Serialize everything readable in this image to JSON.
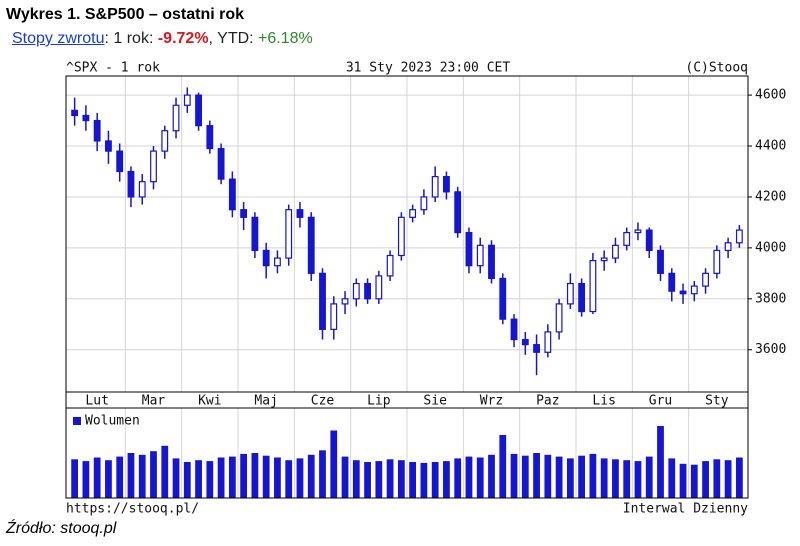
{
  "header": {
    "title": "Wykres 1. S&P500 – ostatni rok",
    "returns": {
      "link": "Stopy zwrotu",
      "period_label": ": 1 rok: ",
      "period_value": "-9.72%",
      "ytd_label": ", YTD: ",
      "ytd_value": "+6.18%"
    }
  },
  "chart_data": {
    "type": "candlestick",
    "symbol_label": "^SPX - 1 rok",
    "date_label": "31 Sty 2023 23:00 CET",
    "copyright": "(C)Stooq",
    "categories": [
      null,
      null,
      "Lut",
      null,
      null,
      null,
      null,
      "Mar",
      null,
      null,
      null,
      null,
      "Kwi",
      null,
      null,
      null,
      null,
      "Maj",
      null,
      null,
      null,
      null,
      "Cze",
      null,
      null,
      null,
      null,
      "Lip",
      null,
      null,
      null,
      null,
      "Sie",
      null,
      null,
      null,
      null,
      "Wrz",
      null,
      null,
      null,
      null,
      "Paz",
      null,
      null,
      null,
      null,
      "Lis",
      null,
      null,
      null,
      null,
      "Gru",
      null,
      null,
      null,
      null,
      "Sty",
      null,
      null
    ],
    "open": [
      4540,
      4520,
      4500,
      4420,
      4380,
      4300,
      4200,
      4260,
      4380,
      4460,
      4560,
      4600,
      4480,
      4390,
      4270,
      4150,
      4120,
      3990,
      3930,
      3960,
      4150,
      4120,
      3900,
      3680,
      3780,
      3800,
      3860,
      3800,
      3890,
      3970,
      4120,
      4150,
      4200,
      4280,
      4220,
      4060,
      3930,
      4010,
      3880,
      3720,
      3640,
      3620,
      3590,
      3670,
      3780,
      3860,
      3750,
      3950,
      3960,
      4010,
      4060,
      4070,
      3990,
      3900,
      3830,
      3820,
      3850,
      3900,
      3990,
      4020
    ],
    "high": [
      4590,
      4560,
      4530,
      4460,
      4410,
      4320,
      4290,
      4400,
      4480,
      4590,
      4630,
      4610,
      4500,
      4410,
      4300,
      4180,
      4140,
      4020,
      3990,
      4170,
      4180,
      4140,
      3920,
      3810,
      3830,
      3880,
      3880,
      3910,
      3990,
      4140,
      4170,
      4230,
      4320,
      4300,
      4240,
      4080,
      4040,
      4030,
      3900,
      3740,
      3670,
      3660,
      3700,
      3800,
      3900,
      3880,
      3980,
      3990,
      4040,
      4080,
      4100,
      4080,
      4010,
      3920,
      3860,
      3870,
      3920,
      4010,
      4040,
      4090
    ],
    "low": [
      4480,
      4460,
      4380,
      4330,
      4260,
      4160,
      4170,
      4230,
      4350,
      4430,
      4530,
      4460,
      4370,
      4250,
      4120,
      4070,
      3960,
      3880,
      3900,
      3930,
      4080,
      3870,
      3640,
      3640,
      3740,
      3770,
      3780,
      3780,
      3870,
      3950,
      4100,
      4130,
      4180,
      4190,
      4040,
      3900,
      3900,
      3860,
      3700,
      3610,
      3580,
      3500,
      3570,
      3640,
      3760,
      3730,
      3740,
      3910,
      3940,
      3990,
      4030,
      3960,
      3870,
      3790,
      3780,
      3790,
      3820,
      3880,
      3960,
      4000
    ],
    "close": [
      4520,
      4500,
      4420,
      4380,
      4300,
      4200,
      4260,
      4380,
      4460,
      4560,
      4600,
      4480,
      4390,
      4270,
      4150,
      4120,
      3990,
      3930,
      3960,
      4150,
      4120,
      3900,
      3680,
      3780,
      3800,
      3860,
      3800,
      3890,
      3970,
      4120,
      4150,
      4200,
      4280,
      4220,
      4060,
      3930,
      4010,
      3880,
      3720,
      3640,
      3620,
      3590,
      3670,
      3780,
      3860,
      3750,
      3950,
      3960,
      4010,
      4060,
      4070,
      3990,
      3900,
      3830,
      3820,
      3850,
      3900,
      3990,
      4020,
      4070
    ],
    "color": "#1515d6",
    "ylim": [
      3434,
      4675
    ],
    "yticks": [
      3600,
      3800,
      4000,
      4200,
      4400,
      4600
    ],
    "grid": true,
    "volume": {
      "name": "Wolumen",
      "color": "#1515d6",
      "ylim": [
        0,
        10
      ],
      "values": [
        4.3,
        4.1,
        4.5,
        4.2,
        4.6,
        5.0,
        4.8,
        5.2,
        5.8,
        4.4,
        4.0,
        4.2,
        4.1,
        4.5,
        4.6,
        4.9,
        5.0,
        4.7,
        4.5,
        4.2,
        4.4,
        4.8,
        5.3,
        7.5,
        4.6,
        4.2,
        4.0,
        4.1,
        4.3,
        4.2,
        4.0,
        3.9,
        4.0,
        4.1,
        4.4,
        4.6,
        4.5,
        4.8,
        7.0,
        4.9,
        4.7,
        5.0,
        4.8,
        4.6,
        4.4,
        4.7,
        4.9,
        4.4,
        4.3,
        4.2,
        4.1,
        4.6,
        8.0,
        4.4,
        3.8,
        3.7,
        4.1,
        4.3,
        4.2,
        4.5
      ]
    },
    "footer_left": "https://stooq.pl/",
    "footer_right": "Interwal Dzienny"
  },
  "source": "Źródło: stooq.pl"
}
